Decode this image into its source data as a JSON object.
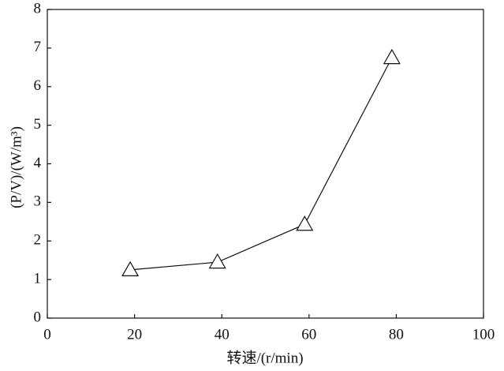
{
  "chart_data": {
    "type": "line",
    "x_label": "转速/(r/min)",
    "y_label": "(P/V)/(W/m³)",
    "x": [
      19,
      39,
      59,
      79
    ],
    "series": [
      {
        "name": "P/V",
        "color": "#111111",
        "values": [
          1.25,
          1.45,
          2.43,
          6.75
        ]
      }
    ],
    "xlim": [
      0,
      100
    ],
    "xticks": [
      0,
      20,
      40,
      60,
      80,
      100
    ],
    "ylim": [
      0,
      8
    ],
    "yticks": [
      0,
      1,
      2,
      3,
      4,
      5,
      6,
      7,
      8
    ],
    "marker": "triangle",
    "grid": false
  }
}
